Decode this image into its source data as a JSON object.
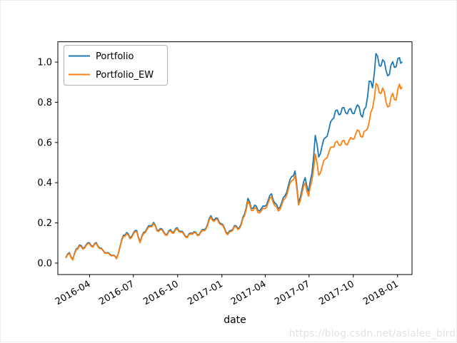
{
  "watermark": {
    "text": "https://blog.csdn.net/asialee_bird",
    "color": "#e3e3e3"
  },
  "chart_data": {
    "type": "line",
    "title": "",
    "xlabel": "date",
    "ylabel": "",
    "grid": false,
    "legend_position": "upper left",
    "background": "#ffffff",
    "xlim": [
      "2016-01-26",
      "2018-01-31"
    ],
    "ylim": [
      -0.057,
      1.101
    ],
    "x_ticks": [
      {
        "label": "2016-04",
        "date": "2016-04-01"
      },
      {
        "label": "2016-07",
        "date": "2016-07-01"
      },
      {
        "label": "2016-10",
        "date": "2016-10-01"
      },
      {
        "label": "2017-01",
        "date": "2017-01-01"
      },
      {
        "label": "2017-04",
        "date": "2017-04-01"
      },
      {
        "label": "2017-07",
        "date": "2017-07-01"
      },
      {
        "label": "2017-10",
        "date": "2017-10-01"
      },
      {
        "label": "2018-01",
        "date": "2018-01-01"
      }
    ],
    "y_ticks": [
      {
        "label": "0.0",
        "value": 0.0
      },
      {
        "label": "0.2",
        "value": 0.2
      },
      {
        "label": "0.4",
        "value": 0.4
      },
      {
        "label": "0.6",
        "value": 0.6
      },
      {
        "label": "0.8",
        "value": 0.8
      },
      {
        "label": "1.0",
        "value": 1.0
      }
    ],
    "series": [
      {
        "name": "Portfolio",
        "color": "#1f77b4"
      },
      {
        "name": "Portfolio_EW",
        "color": "#ff7f0e"
      }
    ],
    "rows_columns": [
      "date",
      "Portfolio",
      "Portfolio_EW"
    ],
    "rows": [
      [
        "2016-02-12",
        0.03,
        0.027
      ],
      [
        "2016-02-19",
        0.052,
        0.048
      ],
      [
        "2016-02-26",
        0.018,
        0.015
      ],
      [
        "2016-03-04",
        0.07,
        0.066
      ],
      [
        "2016-03-11",
        0.09,
        0.085
      ],
      [
        "2016-03-18",
        0.074,
        0.07
      ],
      [
        "2016-03-25",
        0.092,
        0.088
      ],
      [
        "2016-04-01",
        0.1,
        0.096
      ],
      [
        "2016-04-08",
        0.083,
        0.08
      ],
      [
        "2016-04-15",
        0.102,
        0.098
      ],
      [
        "2016-04-22",
        0.075,
        0.072
      ],
      [
        "2016-04-29",
        0.064,
        0.061
      ],
      [
        "2016-05-06",
        0.05,
        0.048
      ],
      [
        "2016-05-13",
        0.045,
        0.042
      ],
      [
        "2016-05-20",
        0.04,
        0.038
      ],
      [
        "2016-05-27",
        0.024,
        0.022
      ],
      [
        "2016-06-03",
        0.08,
        0.076
      ],
      [
        "2016-06-10",
        0.138,
        0.132
      ],
      [
        "2016-06-17",
        0.152,
        0.146
      ],
      [
        "2016-06-24",
        0.126,
        0.121
      ],
      [
        "2016-07-01",
        0.15,
        0.145
      ],
      [
        "2016-07-08",
        0.162,
        0.156
      ],
      [
        "2016-07-15",
        0.106,
        0.102
      ],
      [
        "2016-07-22",
        0.152,
        0.147
      ],
      [
        "2016-07-29",
        0.172,
        0.166
      ],
      [
        "2016-08-05",
        0.186,
        0.18
      ],
      [
        "2016-08-12",
        0.202,
        0.196
      ],
      [
        "2016-08-19",
        0.164,
        0.16
      ],
      [
        "2016-08-26",
        0.172,
        0.167
      ],
      [
        "2016-09-02",
        0.155,
        0.151
      ],
      [
        "2016-09-09",
        0.143,
        0.139
      ],
      [
        "2016-09-16",
        0.166,
        0.161
      ],
      [
        "2016-09-23",
        0.154,
        0.15
      ],
      [
        "2016-09-30",
        0.176,
        0.171
      ],
      [
        "2016-10-07",
        0.158,
        0.154
      ],
      [
        "2016-10-14",
        0.146,
        0.142
      ],
      [
        "2016-10-21",
        0.13,
        0.127
      ],
      [
        "2016-10-28",
        0.15,
        0.146
      ],
      [
        "2016-11-04",
        0.156,
        0.152
      ],
      [
        "2016-11-11",
        0.14,
        0.137
      ],
      [
        "2016-11-18",
        0.156,
        0.152
      ],
      [
        "2016-11-25",
        0.166,
        0.161
      ],
      [
        "2016-12-02",
        0.192,
        0.186
      ],
      [
        "2016-12-09",
        0.236,
        0.229
      ],
      [
        "2016-12-16",
        0.214,
        0.208
      ],
      [
        "2016-12-23",
        0.222,
        0.216
      ],
      [
        "2016-12-30",
        0.196,
        0.191
      ],
      [
        "2017-01-06",
        0.176,
        0.171
      ],
      [
        "2017-01-13",
        0.146,
        0.141
      ],
      [
        "2017-01-20",
        0.162,
        0.157
      ],
      [
        "2017-01-27",
        0.186,
        0.181
      ],
      [
        "2017-02-03",
        0.172,
        0.167
      ],
      [
        "2017-02-10",
        0.196,
        0.19
      ],
      [
        "2017-02-17",
        0.245,
        0.237
      ],
      [
        "2017-02-24",
        0.322,
        0.308
      ],
      [
        "2017-03-03",
        0.272,
        0.262
      ],
      [
        "2017-03-10",
        0.288,
        0.276
      ],
      [
        "2017-03-17",
        0.262,
        0.252
      ],
      [
        "2017-03-24",
        0.272,
        0.261
      ],
      [
        "2017-03-31",
        0.282,
        0.27
      ],
      [
        "2017-04-07",
        0.312,
        0.299
      ],
      [
        "2017-04-14",
        0.345,
        0.33
      ],
      [
        "2017-04-21",
        0.298,
        0.286
      ],
      [
        "2017-04-28",
        0.27,
        0.259
      ],
      [
        "2017-05-05",
        0.3,
        0.288
      ],
      [
        "2017-05-12",
        0.335,
        0.321
      ],
      [
        "2017-05-19",
        0.385,
        0.368
      ],
      [
        "2017-05-26",
        0.43,
        0.41
      ],
      [
        "2017-06-02",
        0.458,
        0.437
      ],
      [
        "2017-06-09",
        0.302,
        0.289
      ],
      [
        "2017-06-16",
        0.362,
        0.343
      ],
      [
        "2017-06-23",
        0.425,
        0.399
      ],
      [
        "2017-06-30",
        0.355,
        0.333
      ],
      [
        "2017-07-07",
        0.445,
        0.411
      ],
      [
        "2017-07-14",
        0.635,
        0.543
      ],
      [
        "2017-07-21",
        0.528,
        0.437
      ],
      [
        "2017-07-28",
        0.582,
        0.478
      ],
      [
        "2017-08-04",
        0.624,
        0.519
      ],
      [
        "2017-08-11",
        0.662,
        0.551
      ],
      [
        "2017-08-18",
        0.714,
        0.577
      ],
      [
        "2017-08-25",
        0.758,
        0.601
      ],
      [
        "2017-09-01",
        0.738,
        0.587
      ],
      [
        "2017-09-08",
        0.772,
        0.607
      ],
      [
        "2017-09-15",
        0.748,
        0.591
      ],
      [
        "2017-09-22",
        0.764,
        0.609
      ],
      [
        "2017-09-29",
        0.746,
        0.617
      ],
      [
        "2017-10-06",
        0.768,
        0.643
      ],
      [
        "2017-10-13",
        0.778,
        0.657
      ],
      [
        "2017-10-20",
        0.726,
        0.627
      ],
      [
        "2017-10-27",
        0.775,
        0.659
      ],
      [
        "2017-11-03",
        0.905,
        0.703
      ],
      [
        "2017-11-10",
        0.872,
        0.77
      ],
      [
        "2017-11-17",
        1.042,
        0.893
      ],
      [
        "2017-11-24",
        0.982,
        0.847
      ],
      [
        "2017-12-01",
        1.012,
        0.871
      ],
      [
        "2017-12-08",
        0.958,
        0.801
      ],
      [
        "2017-12-15",
        0.938,
        0.781
      ],
      [
        "2017-12-22",
        1.002,
        0.845
      ],
      [
        "2017-12-29",
        0.978,
        0.811
      ],
      [
        "2018-01-05",
        1.022,
        0.89
      ],
      [
        "2018-01-10",
        1.0,
        0.874
      ]
    ]
  }
}
